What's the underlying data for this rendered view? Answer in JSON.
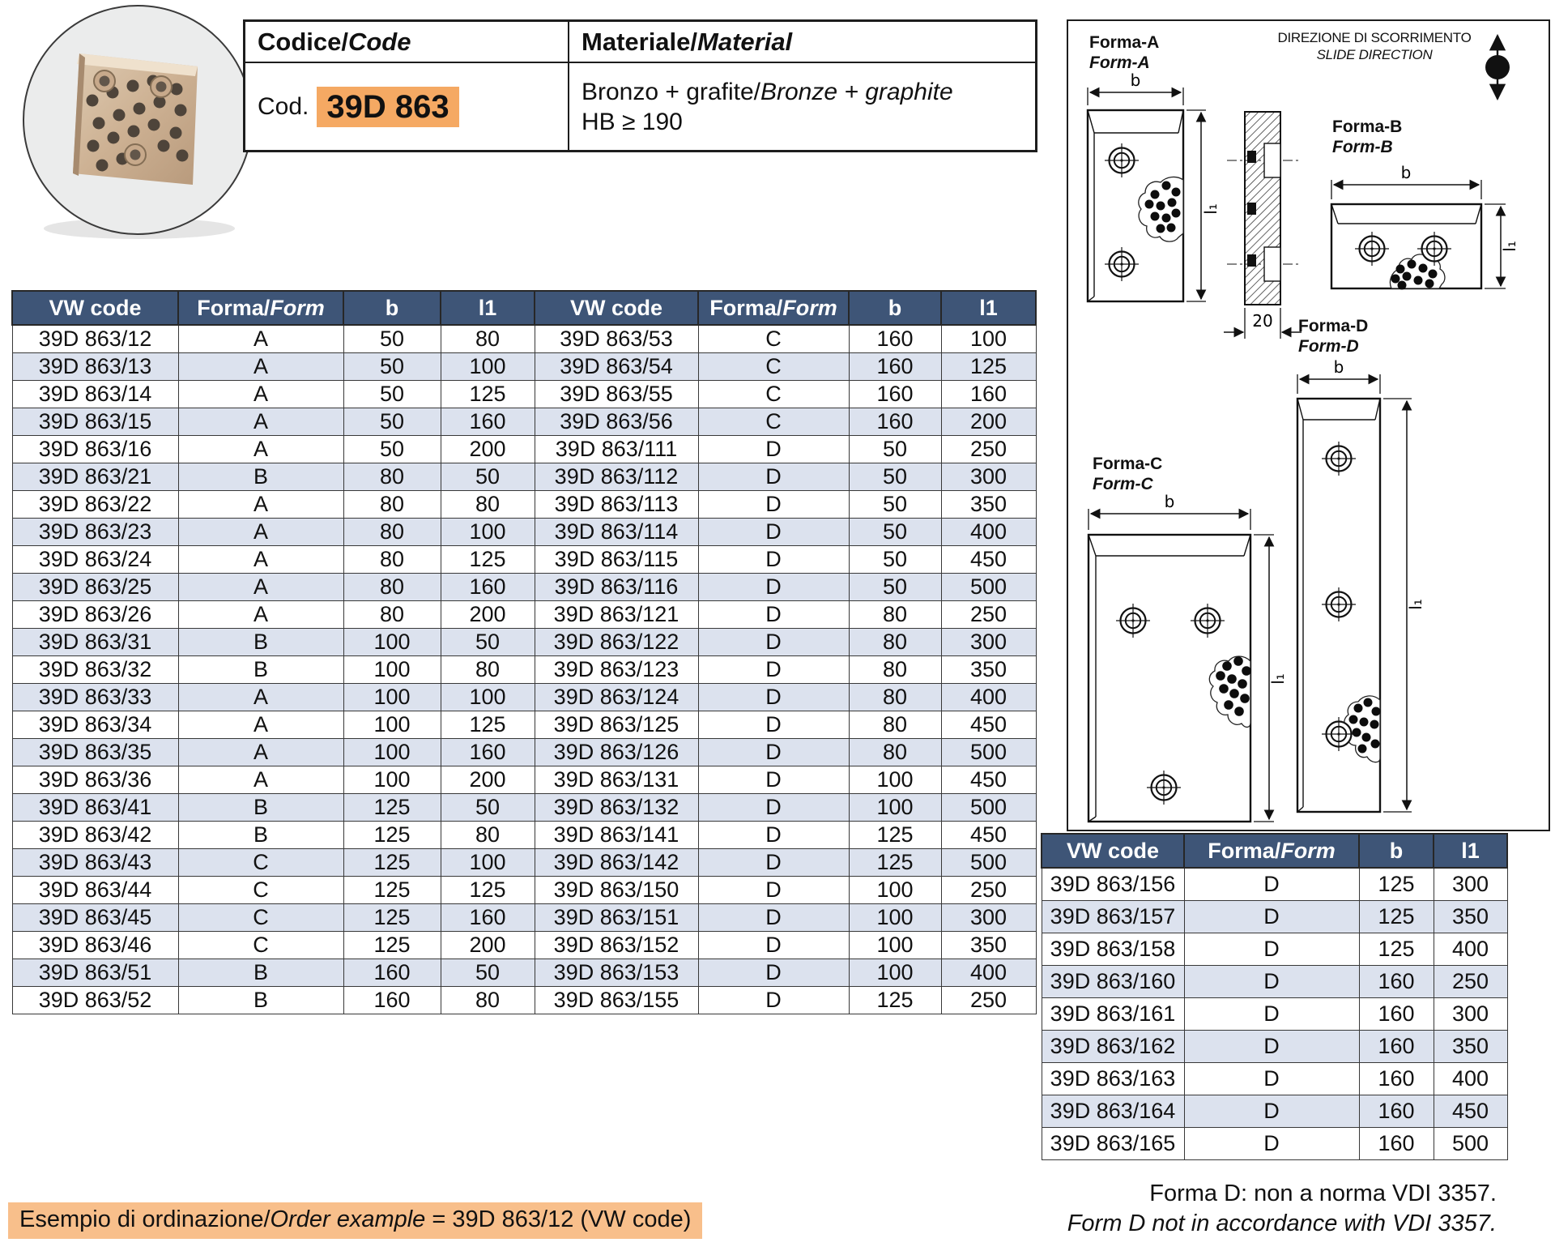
{
  "colors": {
    "header_blue": "#3e5577",
    "row_alt": "#dce2ee",
    "accent_orange": "#f5a963",
    "footer_orange": "#f8bf8b"
  },
  "code_panel": {
    "codice_it": "Codice/",
    "codice_en": "Code",
    "materiale_it": "Materiale/",
    "materiale_en": "Material",
    "cod_prefix": "Cod.",
    "code_value": "39D 863",
    "material_it": "Bronzo + grafite/",
    "material_en": "Bronze + graphite",
    "hardness": "HB ≥ 190"
  },
  "slide_direction": {
    "line1_it": "DIREZIONE DI SCORRIMENTO",
    "line2_en": "SLIDE DIRECTION"
  },
  "forms": {
    "a": {
      "it": "Forma-A",
      "en": "Form-A"
    },
    "b": {
      "it": "Forma-B",
      "en": "Form-B"
    },
    "c": {
      "it": "Forma-C",
      "en": "Form-C"
    },
    "d": {
      "it": "Forma-D",
      "en": "Form-D"
    }
  },
  "dims": {
    "b": "b",
    "l1": "l₁",
    "thickness": "20"
  },
  "table_headers": {
    "vw": "VW code",
    "forma_it": "Forma/",
    "forma_en": "Form",
    "b": "b",
    "l1": "l1"
  },
  "main_table": {
    "rows": [
      [
        "39D 863/12",
        "A",
        "50",
        "80",
        "39D 863/53",
        "C",
        "160",
        "100"
      ],
      [
        "39D 863/13",
        "A",
        "50",
        "100",
        "39D 863/54",
        "C",
        "160",
        "125"
      ],
      [
        "39D 863/14",
        "A",
        "50",
        "125",
        "39D 863/55",
        "C",
        "160",
        "160"
      ],
      [
        "39D 863/15",
        "A",
        "50",
        "160",
        "39D 863/56",
        "C",
        "160",
        "200"
      ],
      [
        "39D 863/16",
        "A",
        "50",
        "200",
        "39D 863/111",
        "D",
        "50",
        "250"
      ],
      [
        "39D 863/21",
        "B",
        "80",
        "50",
        "39D 863/112",
        "D",
        "50",
        "300"
      ],
      [
        "39D 863/22",
        "A",
        "80",
        "80",
        "39D 863/113",
        "D",
        "50",
        "350"
      ],
      [
        "39D 863/23",
        "A",
        "80",
        "100",
        "39D 863/114",
        "D",
        "50",
        "400"
      ],
      [
        "39D 863/24",
        "A",
        "80",
        "125",
        "39D 863/115",
        "D",
        "50",
        "450"
      ],
      [
        "39D 863/25",
        "A",
        "80",
        "160",
        "39D 863/116",
        "D",
        "50",
        "500"
      ],
      [
        "39D 863/26",
        "A",
        "80",
        "200",
        "39D 863/121",
        "D",
        "80",
        "250"
      ],
      [
        "39D 863/31",
        "B",
        "100",
        "50",
        "39D 863/122",
        "D",
        "80",
        "300"
      ],
      [
        "39D 863/32",
        "B",
        "100",
        "80",
        "39D 863/123",
        "D",
        "80",
        "350"
      ],
      [
        "39D 863/33",
        "A",
        "100",
        "100",
        "39D 863/124",
        "D",
        "80",
        "400"
      ],
      [
        "39D 863/34",
        "A",
        "100",
        "125",
        "39D 863/125",
        "D",
        "80",
        "450"
      ],
      [
        "39D 863/35",
        "A",
        "100",
        "160",
        "39D 863/126",
        "D",
        "80",
        "500"
      ],
      [
        "39D 863/36",
        "A",
        "100",
        "200",
        "39D 863/131",
        "D",
        "100",
        "450"
      ],
      [
        "39D 863/41",
        "B",
        "125",
        "50",
        "39D 863/132",
        "D",
        "100",
        "500"
      ],
      [
        "39D 863/42",
        "B",
        "125",
        "80",
        "39D 863/141",
        "D",
        "125",
        "450"
      ],
      [
        "39D 863/43",
        "C",
        "125",
        "100",
        "39D 863/142",
        "D",
        "125",
        "500"
      ],
      [
        "39D 863/44",
        "C",
        "125",
        "125",
        "39D 863/150",
        "D",
        "100",
        "250"
      ],
      [
        "39D 863/45",
        "C",
        "125",
        "160",
        "39D 863/151",
        "D",
        "100",
        "300"
      ],
      [
        "39D 863/46",
        "C",
        "125",
        "200",
        "39D 863/152",
        "D",
        "100",
        "350"
      ],
      [
        "39D 863/51",
        "B",
        "160",
        "50",
        "39D 863/153",
        "D",
        "100",
        "400"
      ],
      [
        "39D 863/52",
        "B",
        "160",
        "80",
        "39D 863/155",
        "D",
        "125",
        "250"
      ]
    ]
  },
  "side_table": {
    "rows": [
      [
        "39D 863/156",
        "D",
        "125",
        "300"
      ],
      [
        "39D 863/157",
        "D",
        "125",
        "350"
      ],
      [
        "39D 863/158",
        "D",
        "125",
        "400"
      ],
      [
        "39D 863/160",
        "D",
        "160",
        "250"
      ],
      [
        "39D 863/161",
        "D",
        "160",
        "300"
      ],
      [
        "39D 863/162",
        "D",
        "160",
        "350"
      ],
      [
        "39D 863/163",
        "D",
        "160",
        "400"
      ],
      [
        "39D 863/164",
        "D",
        "160",
        "450"
      ],
      [
        "39D 863/165",
        "D",
        "160",
        "500"
      ]
    ]
  },
  "notes": {
    "line1_it": "Forma D: non a norma VDI 3357.",
    "line2_en": "Form D not in accordance with VDI 3357."
  },
  "order_example": {
    "it": "Esempio di ordinazione/",
    "en": "Order example",
    "rest": " = 39D 863/12 (VW code)"
  }
}
